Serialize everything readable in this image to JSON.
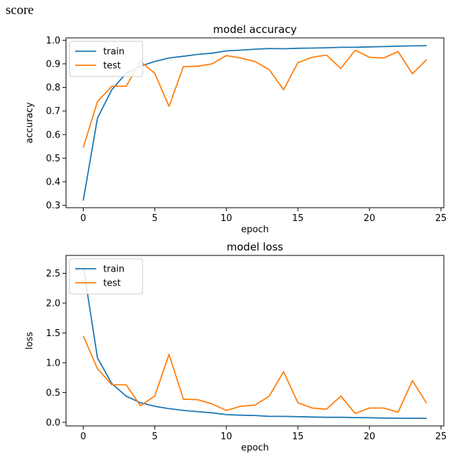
{
  "caption": "score",
  "chart_data": [
    {
      "type": "line",
      "title": "model accuracy",
      "xlabel": "epoch",
      "ylabel": "accuracy",
      "xlim": [
        -1.2,
        25.2
      ],
      "ylim": [
        0.29,
        1.01
      ],
      "xticks": [
        0,
        5,
        10,
        15,
        20,
        25
      ],
      "yticks": [
        0.3,
        0.4,
        0.5,
        0.6,
        0.7,
        0.8,
        0.9,
        1.0
      ],
      "ytick_decimals": 1,
      "legend": "upper left",
      "grid": false,
      "x": [
        0,
        1,
        2,
        3,
        4,
        5,
        6,
        7,
        8,
        9,
        10,
        11,
        12,
        13,
        14,
        15,
        16,
        17,
        18,
        19,
        20,
        21,
        22,
        23,
        24
      ],
      "series": [
        {
          "name": "train",
          "color": "#1f77b4",
          "values": [
            0.32,
            0.67,
            0.79,
            0.86,
            0.89,
            0.91,
            0.925,
            0.932,
            0.94,
            0.945,
            0.955,
            0.958,
            0.962,
            0.965,
            0.964,
            0.966,
            0.967,
            0.968,
            0.97,
            0.97,
            0.972,
            0.973,
            0.975,
            0.976,
            0.977
          ]
        },
        {
          "name": "test",
          "color": "#ff7f0e",
          "values": [
            0.545,
            0.74,
            0.805,
            0.805,
            0.91,
            0.86,
            0.72,
            0.888,
            0.89,
            0.9,
            0.935,
            0.925,
            0.91,
            0.875,
            0.79,
            0.905,
            0.928,
            0.937,
            0.88,
            0.958,
            0.928,
            0.925,
            0.952,
            0.858,
            0.918
          ]
        }
      ]
    },
    {
      "type": "line",
      "title": "model loss",
      "xlabel": "epoch",
      "ylabel": "loss",
      "xlim": [
        -1.2,
        25.2
      ],
      "ylim": [
        -0.06,
        2.8
      ],
      "xticks": [
        0,
        5,
        10,
        15,
        20,
        25
      ],
      "yticks": [
        0.0,
        0.5,
        1.0,
        1.5,
        2.0,
        2.5
      ],
      "ytick_decimals": 1,
      "legend": "upper left",
      "grid": false,
      "x": [
        0,
        1,
        2,
        3,
        4,
        5,
        6,
        7,
        8,
        9,
        10,
        11,
        12,
        13,
        14,
        15,
        16,
        17,
        18,
        19,
        20,
        21,
        22,
        23,
        24
      ],
      "series": [
        {
          "name": "train",
          "color": "#1f77b4",
          "values": [
            2.62,
            1.08,
            0.65,
            0.44,
            0.33,
            0.27,
            0.23,
            0.2,
            0.18,
            0.16,
            0.13,
            0.12,
            0.115,
            0.1,
            0.1,
            0.095,
            0.09,
            0.085,
            0.085,
            0.08,
            0.078,
            0.072,
            0.07,
            0.068,
            0.068
          ]
        },
        {
          "name": "test",
          "color": "#ff7f0e",
          "values": [
            1.45,
            0.9,
            0.63,
            0.63,
            0.28,
            0.44,
            1.14,
            0.39,
            0.38,
            0.31,
            0.2,
            0.27,
            0.29,
            0.44,
            0.85,
            0.33,
            0.24,
            0.22,
            0.44,
            0.15,
            0.24,
            0.24,
            0.17,
            0.7,
            0.32
          ]
        }
      ]
    }
  ]
}
